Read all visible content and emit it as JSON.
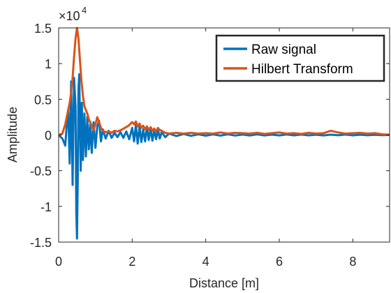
{
  "chart_data": {
    "type": "line",
    "title": "",
    "xlabel": "Distance [m]",
    "ylabel": "Amplitude",
    "xlim": [
      0,
      9
    ],
    "ylim": [
      -15000,
      15000
    ],
    "x_ticks": [
      0,
      2,
      4,
      6,
      8
    ],
    "x_tick_labels": [
      "0",
      "2",
      "4",
      "6",
      "8"
    ],
    "y_ticks": [
      -15000,
      -10000,
      -5000,
      0,
      5000,
      10000,
      15000
    ],
    "y_tick_labels": [
      "-1.5",
      "-1",
      "-0.5",
      "0",
      "0.5",
      "1",
      "1.5"
    ],
    "y_exponent_base": "×10",
    "y_exponent_power": "4",
    "grid": false,
    "legend_position": "top-right",
    "series": [
      {
        "name": "Raw signal",
        "color": "#0072bd",
        "x": [
          0,
          0.1,
          0.18,
          0.22,
          0.26,
          0.3,
          0.34,
          0.38,
          0.42,
          0.46,
          0.48,
          0.5,
          0.52,
          0.54,
          0.56,
          0.58,
          0.6,
          0.63,
          0.66,
          0.7,
          0.74,
          0.78,
          0.82,
          0.86,
          0.9,
          0.95,
          1.0,
          1.05,
          1.1,
          1.15,
          1.2,
          1.28,
          1.36,
          1.44,
          1.52,
          1.6,
          1.68,
          1.76,
          1.84,
          1.92,
          2.0,
          2.05,
          2.1,
          2.15,
          2.2,
          2.25,
          2.3,
          2.35,
          2.4,
          2.45,
          2.5,
          2.55,
          2.6,
          2.65,
          2.7,
          2.75,
          2.8,
          2.9,
          3.0,
          3.2,
          3.4,
          3.6,
          3.8,
          4.0,
          4.2,
          4.4,
          4.6,
          4.8,
          5.0,
          5.2,
          5.4,
          5.6,
          5.8,
          6.0,
          6.2,
          6.4,
          6.6,
          6.8,
          7.0,
          7.2,
          7.4,
          7.6,
          7.8,
          8.0,
          8.2,
          8.4,
          8.6,
          8.8,
          9.0
        ],
        "y": [
          0,
          -500,
          -1500,
          1500,
          3500,
          -4000,
          7500,
          -7000,
          8000,
          4000,
          -11000,
          -14500,
          -6000,
          6500,
          8500,
          2000,
          -5000,
          4500,
          -3500,
          3000,
          -3000,
          2500,
          -2000,
          1500,
          -2500,
          1800,
          -1800,
          1200,
          2000,
          -900,
          800,
          -500,
          600,
          -400,
          300,
          -300,
          400,
          -400,
          500,
          -600,
          1000,
          -900,
          1400,
          -1200,
          1200,
          -1000,
          800,
          -900,
          1100,
          -700,
          900,
          -800,
          700,
          -600,
          800,
          -500,
          400,
          -300,
          200,
          -150,
          150,
          -120,
          100,
          -100,
          80,
          -90,
          100,
          -80,
          60,
          -70,
          80,
          -60,
          50,
          -60,
          70,
          -50,
          60,
          -50,
          40,
          -60,
          50,
          -40,
          60,
          -50,
          40,
          -40,
          30,
          -30,
          0
        ]
      },
      {
        "name": "Hilbert Transform",
        "color": "#d95319",
        "x": [
          0,
          0.1,
          0.18,
          0.24,
          0.3,
          0.34,
          0.38,
          0.42,
          0.46,
          0.5,
          0.54,
          0.58,
          0.62,
          0.66,
          0.7,
          0.74,
          0.78,
          0.82,
          0.86,
          0.9,
          0.95,
          1.0,
          1.05,
          1.1,
          1.15,
          1.2,
          1.28,
          1.36,
          1.44,
          1.52,
          1.6,
          1.7,
          1.8,
          1.9,
          2.0,
          2.05,
          2.1,
          2.15,
          2.2,
          2.25,
          2.3,
          2.35,
          2.4,
          2.45,
          2.5,
          2.55,
          2.6,
          2.65,
          2.7,
          2.75,
          2.8,
          2.9,
          3.0,
          3.2,
          3.4,
          3.6,
          3.8,
          4.0,
          4.2,
          4.4,
          4.6,
          4.8,
          5.0,
          5.2,
          5.4,
          5.6,
          5.8,
          6.0,
          6.2,
          6.4,
          6.6,
          6.8,
          7.0,
          7.2,
          7.4,
          7.6,
          7.8,
          8.0,
          8.2,
          8.4,
          8.6,
          8.8,
          9.0
        ],
        "y": [
          0,
          200,
          1500,
          3000,
          4500,
          6000,
          8000,
          11000,
          13500,
          15000,
          13500,
          10500,
          7500,
          5500,
          4000,
          3500,
          3000,
          2200,
          1800,
          1200,
          700,
          1500,
          2500,
          1800,
          1000,
          600,
          400,
          500,
          300,
          600,
          500,
          700,
          1000,
          1300,
          1800,
          1500,
          1900,
          1200,
          1600,
          1000,
          1300,
          800,
          1200,
          700,
          1100,
          600,
          900,
          500,
          1000,
          700,
          600,
          300,
          200,
          300,
          200,
          300,
          200,
          250,
          200,
          350,
          200,
          300,
          250,
          200,
          300,
          150,
          250,
          350,
          200,
          250,
          150,
          300,
          200,
          250,
          600,
          350,
          200,
          250,
          300,
          200,
          250,
          100,
          50
        ]
      }
    ]
  }
}
